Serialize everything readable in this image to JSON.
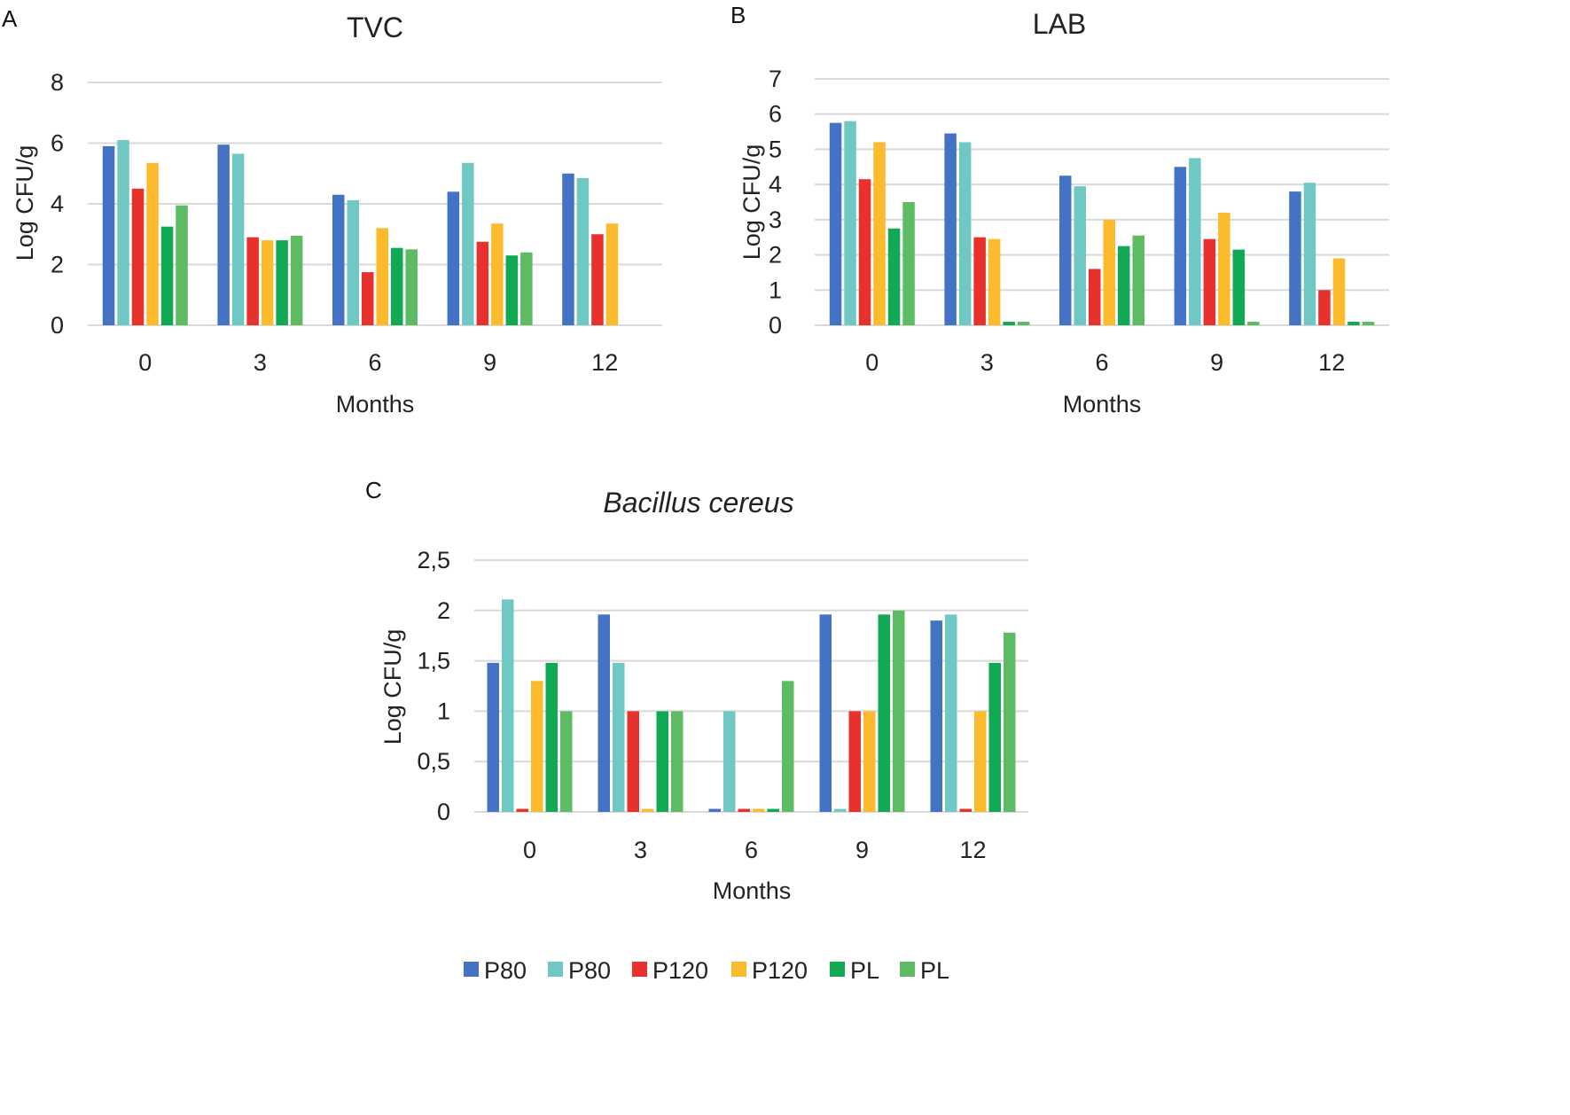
{
  "legend": [
    {
      "label": "P80",
      "color": "#4472c4"
    },
    {
      "label": "P80",
      "color": "#70c8c4"
    },
    {
      "label": "P120",
      "color": "#e8302d"
    },
    {
      "label": "P120",
      "color": "#fbbb2c"
    },
    {
      "label": "PL",
      "color": "#12a955"
    },
    {
      "label": "PL",
      "color": "#5cbb63"
    }
  ],
  "chart_data": [
    {
      "panel": "A",
      "type": "bar",
      "title": "TVC",
      "title_style": "normal",
      "xlabel": "Months",
      "ylabel": "Log CFU/g",
      "categories": [
        "0",
        "3",
        "6",
        "9",
        "12"
      ],
      "ylim": [
        0,
        8
      ],
      "yticks": [
        0,
        2,
        4,
        6,
        8
      ],
      "ytick_labels": [
        "0",
        "2",
        "4",
        "6",
        "8"
      ],
      "grid": true,
      "series": [
        {
          "name": "P80",
          "values": [
            5.9,
            5.95,
            4.3,
            4.4,
            5.0
          ]
        },
        {
          "name": "P80",
          "values": [
            6.1,
            5.65,
            4.12,
            5.35,
            4.85
          ]
        },
        {
          "name": "P120",
          "values": [
            4.5,
            2.9,
            1.75,
            2.75,
            3.0
          ]
        },
        {
          "name": "P120",
          "values": [
            5.35,
            2.8,
            3.2,
            3.35,
            3.35
          ]
        },
        {
          "name": "PL",
          "values": [
            3.25,
            2.8,
            2.55,
            2.3,
            0
          ]
        },
        {
          "name": "PL",
          "values": [
            3.95,
            2.95,
            2.5,
            2.4,
            0
          ]
        }
      ]
    },
    {
      "panel": "B",
      "type": "bar",
      "title": "LAB",
      "title_style": "normal",
      "xlabel": "Months",
      "ylabel": "Log CFU/g",
      "categories": [
        "0",
        "3",
        "6",
        "9",
        "12"
      ],
      "ylim": [
        0,
        7
      ],
      "yticks": [
        0,
        1,
        2,
        3,
        4,
        5,
        6,
        7
      ],
      "ytick_labels": [
        "0",
        "1",
        "2",
        "3",
        "4",
        "5",
        "6",
        "7"
      ],
      "grid": true,
      "series": [
        {
          "name": "P80",
          "values": [
            5.75,
            5.45,
            4.25,
            4.5,
            3.8
          ]
        },
        {
          "name": "P80",
          "values": [
            5.8,
            5.2,
            3.95,
            4.75,
            4.05
          ]
        },
        {
          "name": "P120",
          "values": [
            4.15,
            2.5,
            1.6,
            2.45,
            1.0
          ]
        },
        {
          "name": "P120",
          "values": [
            5.2,
            2.45,
            3.0,
            3.2,
            1.9
          ]
        },
        {
          "name": "PL",
          "values": [
            2.75,
            0.1,
            2.25,
            2.15,
            0.1
          ]
        },
        {
          "name": "PL",
          "values": [
            3.5,
            0.1,
            2.55,
            0.1,
            0.1
          ]
        }
      ]
    },
    {
      "panel": "C",
      "type": "bar",
      "title": "Bacillus cereus",
      "title_style": "italic",
      "xlabel": "Months",
      "ylabel": "Log CFU/g",
      "categories": [
        "0",
        "3",
        "6",
        "9",
        "12"
      ],
      "ylim": [
        0,
        2.5
      ],
      "yticks": [
        0,
        0.5,
        1,
        1.5,
        2,
        2.5
      ],
      "ytick_labels": [
        "0",
        "0,5",
        "1",
        "1,5",
        "2",
        "2,5"
      ],
      "grid": true,
      "series": [
        {
          "name": "P80",
          "values": [
            1.48,
            1.96,
            0.03,
            1.96,
            1.9
          ]
        },
        {
          "name": "P80",
          "values": [
            2.11,
            1.48,
            1.0,
            0.03,
            1.96
          ]
        },
        {
          "name": "P120",
          "values": [
            0.03,
            1.0,
            0.03,
            1.0,
            0.03
          ]
        },
        {
          "name": "P120",
          "values": [
            1.3,
            0.03,
            0.03,
            1.0,
            1.0
          ]
        },
        {
          "name": "PL",
          "values": [
            1.48,
            1.0,
            0.03,
            1.96,
            1.48
          ]
        },
        {
          "name": "PL",
          "values": [
            1.0,
            1.0,
            1.3,
            2.0,
            1.78
          ]
        }
      ]
    }
  ]
}
